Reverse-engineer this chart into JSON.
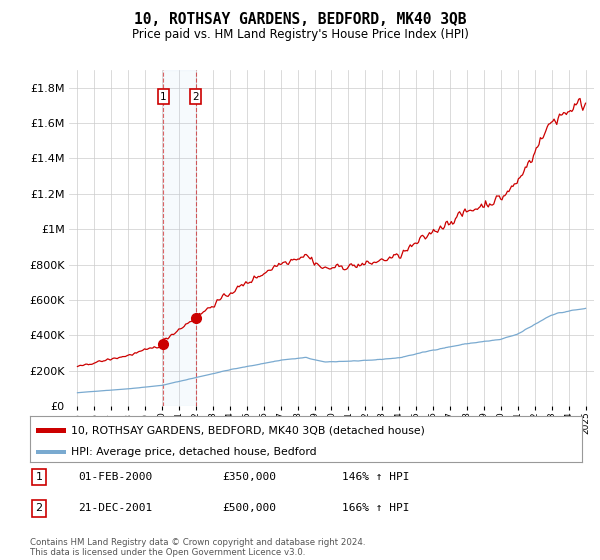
{
  "title": "10, ROTHSAY GARDENS, BEDFORD, MK40 3QB",
  "subtitle": "Price paid vs. HM Land Registry's House Price Index (HPI)",
  "legend_line1": "10, ROTHSAY GARDENS, BEDFORD, MK40 3QB (detached house)",
  "legend_line2": "HPI: Average price, detached house, Bedford",
  "footer": "Contains HM Land Registry data © Crown copyright and database right 2024.\nThis data is licensed under the Open Government Licence v3.0.",
  "sale1_date": "01-FEB-2000",
  "sale1_price": "£350,000",
  "sale1_hpi": "146% ↑ HPI",
  "sale1_year": 2000.08,
  "sale1_value": 350000,
  "sale2_date": "21-DEC-2001",
  "sale2_price": "£500,000",
  "sale2_hpi": "166% ↑ HPI",
  "sale2_year": 2001.97,
  "sale2_value": 500000,
  "red_line_color": "#cc0000",
  "blue_line_color": "#7aaad0",
  "background_color": "#ffffff",
  "grid_color": "#cccccc",
  "ylim_max": 1900000,
  "xlim_start": 1994.5,
  "xlim_end": 2025.5
}
